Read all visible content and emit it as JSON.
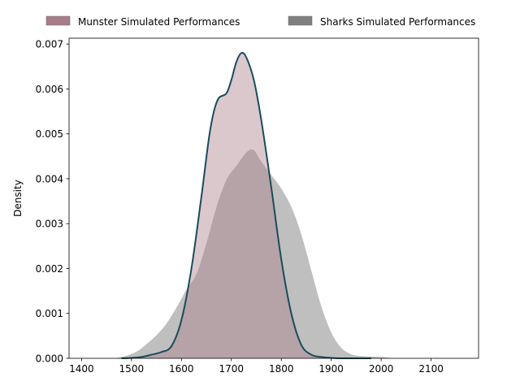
{
  "chart_data": {
    "type": "area",
    "title": "",
    "xlabel": "",
    "ylabel": "Density",
    "xlim": [
      1375,
      2195
    ],
    "ylim": [
      0,
      0.00713
    ],
    "x_ticks": [
      1400,
      1500,
      1600,
      1700,
      1800,
      1900,
      2000,
      2100
    ],
    "y_ticks": [
      0,
      0.001,
      0.002,
      0.003,
      0.004,
      0.005,
      0.006,
      0.007
    ],
    "x_tick_labels": [
      "1400",
      "1500",
      "1600",
      "1700",
      "1800",
      "1900",
      "2000",
      "2100"
    ],
    "y_tick_labels": [
      "0.000",
      "0.001",
      "0.002",
      "0.003",
      "0.004",
      "0.005",
      "0.006",
      "0.007"
    ],
    "grid": false,
    "legend_position": "top",
    "series": [
      {
        "name": "Munster Simulated Performances",
        "fill": "#a87d88",
        "fill_opacity": 0.42,
        "line": "#1b4b5a",
        "x": [
          1480,
          1500,
          1520,
          1540,
          1560,
          1580,
          1600,
          1620,
          1640,
          1655,
          1665,
          1675,
          1690,
          1700,
          1710,
          1720,
          1730,
          1745,
          1760,
          1780,
          1800,
          1820,
          1840,
          1860,
          1880,
          1900,
          1920,
          1940,
          1960,
          1980
        ],
        "y": [
          0,
          1e-05,
          3e-05,
          8e-05,
          0.00014,
          0.00027,
          0.00085,
          0.002,
          0.0036,
          0.0049,
          0.0055,
          0.0058,
          0.0059,
          0.0062,
          0.0066,
          0.0068,
          0.0067,
          0.0062,
          0.0053,
          0.0038,
          0.0022,
          0.001,
          0.0003,
          8e-05,
          3e-05,
          1e-05,
          0,
          0,
          0,
          0
        ]
      },
      {
        "name": "Sharks Simulated Performances",
        "fill": "#808080",
        "fill_opacity": 0.5,
        "line": "#ffffff",
        "x": [
          1450,
          1470,
          1490,
          1510,
          1530,
          1550,
          1570,
          1590,
          1610,
          1630,
          1650,
          1670,
          1690,
          1710,
          1730,
          1745,
          1760,
          1780,
          1800,
          1820,
          1840,
          1860,
          1880,
          1900,
          1920,
          1940,
          1960,
          1980,
          2000,
          2020,
          2040
        ],
        "y": [
          0,
          2e-05,
          7e-05,
          0.00016,
          0.00033,
          0.00053,
          0.00079,
          0.00115,
          0.00155,
          0.0019,
          0.0026,
          0.0034,
          0.004,
          0.0043,
          0.0046,
          0.00465,
          0.0044,
          0.0041,
          0.0038,
          0.0034,
          0.0028,
          0.002,
          0.0012,
          0.0006,
          0.00025,
          0.0001,
          6e-05,
          5e-05,
          4e-05,
          2e-05,
          0
        ]
      }
    ]
  }
}
